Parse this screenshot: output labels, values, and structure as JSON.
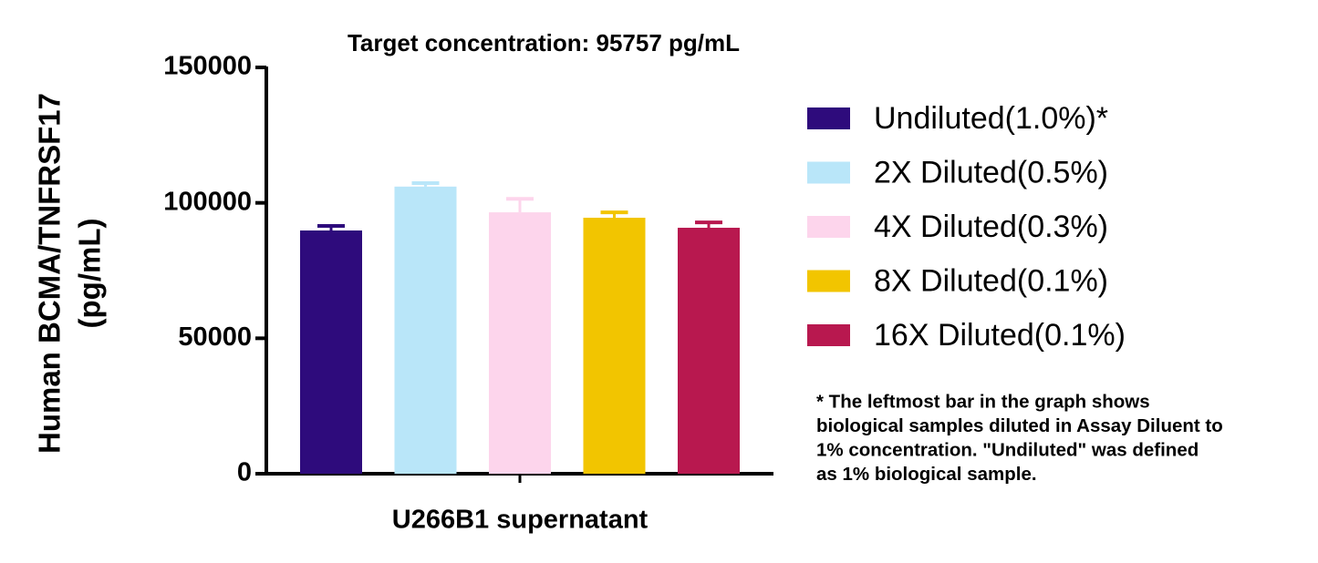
{
  "chart_data": {
    "type": "bar",
    "title": "Target concentration: 95757 pg/mL",
    "y_label": [
      "Human BCMA/TNFRSF17",
      "(pg/mL)"
    ],
    "categories": [
      "U266B1 supernatant"
    ],
    "ylim": [
      0,
      150000
    ],
    "yticks": [
      0,
      50000,
      100000,
      150000
    ],
    "series": [
      {
        "name": "Undiluted(1.0%)*",
        "color": "#2e0b7c",
        "values": [
          89800
        ],
        "errors": [
          1700
        ]
      },
      {
        "name": "2X Diluted(0.5%)",
        "color": "#b9e6f9",
        "values": [
          106000
        ],
        "errors": [
          1300
        ]
      },
      {
        "name": "4X Diluted(0.3%)",
        "color": "#fdd5ec",
        "values": [
          96500
        ],
        "errors": [
          5000
        ]
      },
      {
        "name": "8X Diluted(0.1%)",
        "color": "#f2c500",
        "values": [
          94500
        ],
        "errors": [
          2000
        ]
      },
      {
        "name": "16X Diluted(0.1%)",
        "color": "#b8184f",
        "values": [
          90800
        ],
        "errors": [
          2000
        ]
      }
    ],
    "legend": "right",
    "annotation": [
      "* The leftmost bar in the graph shows",
      "biological samples diluted in Assay Diluent to",
      "1% concentration. \"Undiluted\" was defined",
      "as 1% biological sample."
    ]
  }
}
